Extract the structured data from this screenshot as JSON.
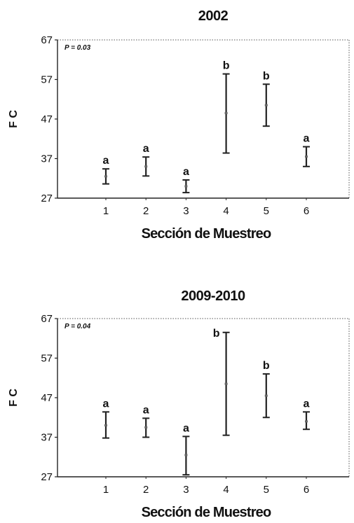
{
  "chart_data": [
    {
      "type": "errorbar",
      "title": "2002",
      "xlabel": "Sección de Muestreo",
      "ylabel": "F C",
      "annotation": "P = 0.03",
      "categories": [
        "1",
        "2",
        "3",
        "4",
        "5",
        "6"
      ],
      "ylim": [
        27,
        67
      ],
      "yticks": [
        27,
        37,
        47,
        57,
        67
      ],
      "mean": [
        32.5,
        35.0,
        30.0,
        48.5,
        50.5,
        37.5
      ],
      "lower": [
        30.6,
        32.6,
        28.4,
        38.4,
        45.2,
        35.0
      ],
      "upper": [
        34.4,
        37.4,
        31.6,
        58.4,
        55.8,
        40.0
      ],
      "groups": [
        "a",
        "a",
        "a",
        "b",
        "b",
        "a"
      ],
      "grid": false,
      "color": "#222222"
    },
    {
      "type": "errorbar",
      "title": "2009-2010",
      "xlabel": "Sección de Muestreo",
      "ylabel": "F C",
      "annotation": "P = 0.04",
      "categories": [
        "1",
        "2",
        "3",
        "4",
        "5",
        "6"
      ],
      "ylim": [
        27,
        67
      ],
      "yticks": [
        27,
        37,
        47,
        57,
        67
      ],
      "mean": [
        40.0,
        39.5,
        32.5,
        50.5,
        47.5,
        41.0
      ],
      "lower": [
        36.8,
        37.0,
        27.5,
        37.5,
        42.0,
        39.0
      ],
      "upper": [
        43.4,
        41.8,
        37.2,
        63.5,
        53.0,
        43.4
      ],
      "groups": [
        "a",
        "a",
        "a",
        "b",
        "b",
        "a"
      ],
      "grid": false,
      "color": "#222222"
    }
  ]
}
